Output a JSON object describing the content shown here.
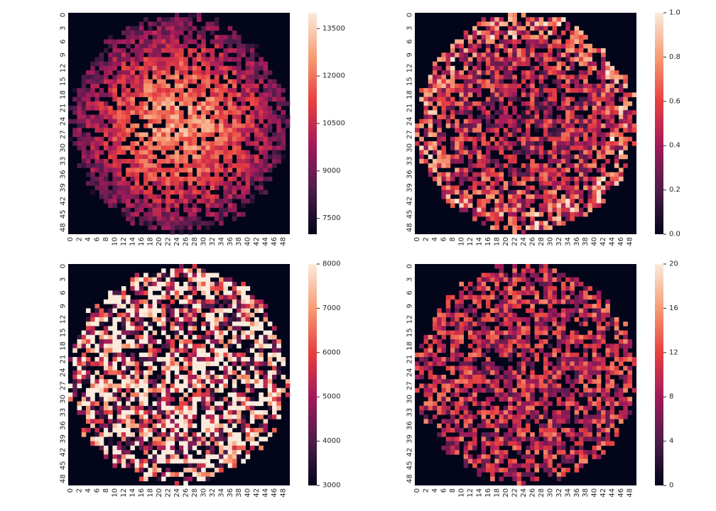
{
  "figure": {
    "background": "#ffffff",
    "frame_color": "#03051a"
  },
  "chart_data": [
    {
      "type": "heatmap",
      "rows": 50,
      "cols": 50,
      "colormap": "rocket",
      "vmin": 7000,
      "vmax": 14000,
      "background_value": 7000,
      "pattern": "radial",
      "disc_center": [
        24.5,
        24.5
      ],
      "disc_radius": 24.5,
      "center_value": 12500,
      "edge_value": 8600,
      "gap_fraction": 0.22,
      "xticks": [
        "0",
        "2",
        "4",
        "6",
        "8",
        "10",
        "12",
        "14",
        "16",
        "18",
        "20",
        "22",
        "24",
        "26",
        "28",
        "30",
        "32",
        "34",
        "36",
        "38",
        "40",
        "42",
        "44",
        "46",
        "48"
      ],
      "yticks": [
        "0",
        "3",
        "6",
        "9",
        "12",
        "15",
        "18",
        "21",
        "24",
        "27",
        "30",
        "33",
        "36",
        "39",
        "42",
        "45",
        "48"
      ],
      "colorbar_ticks": [
        7500,
        9000,
        10500,
        12000,
        13500
      ],
      "colorbar_tick_labels": [
        "7500",
        "9000",
        "10500",
        "12000",
        "13500"
      ],
      "grid": false
    },
    {
      "type": "heatmap",
      "rows": 50,
      "cols": 50,
      "colormap": "rocket",
      "vmin": 0.0,
      "vmax": 1.0,
      "background_value": 0.0,
      "pattern": "edge-rich",
      "disc_center": [
        24.5,
        24.5
      ],
      "disc_radius": 24.5,
      "center_value": 0.38,
      "edge_value": 0.62,
      "gap_fraction": 0.25,
      "xticks": [
        "0",
        "2",
        "4",
        "6",
        "8",
        "10",
        "12",
        "14",
        "16",
        "18",
        "20",
        "22",
        "24",
        "26",
        "28",
        "30",
        "32",
        "34",
        "36",
        "38",
        "40",
        "42",
        "44",
        "46",
        "48"
      ],
      "yticks": [
        "0",
        "3",
        "6",
        "9",
        "12",
        "15",
        "18",
        "21",
        "24",
        "27",
        "30",
        "33",
        "36",
        "39",
        "42",
        "45",
        "48"
      ],
      "colorbar_ticks": [
        0.0,
        0.2,
        0.4,
        0.6,
        0.8,
        1.0
      ],
      "colorbar_tick_labels": [
        "0.0",
        "0.2",
        "0.4",
        "0.6",
        "0.8",
        "1.0"
      ],
      "grid": false
    },
    {
      "type": "heatmap",
      "rows": 50,
      "cols": 50,
      "colormap": "rocket",
      "vmin": 3000,
      "vmax": 8000,
      "background_value": 3000,
      "pattern": "noisy",
      "disc_center": [
        24.5,
        24.5
      ],
      "disc_radius": 24.5,
      "center_value": 6400,
      "edge_value": 6000,
      "gap_fraction": 0.28,
      "xticks": [
        "0",
        "2",
        "4",
        "6",
        "8",
        "10",
        "12",
        "14",
        "16",
        "18",
        "20",
        "22",
        "24",
        "26",
        "28",
        "30",
        "32",
        "34",
        "36",
        "38",
        "40",
        "42",
        "44",
        "46",
        "48"
      ],
      "yticks": [
        "0",
        "3",
        "6",
        "9",
        "12",
        "15",
        "18",
        "21",
        "24",
        "27",
        "30",
        "33",
        "36",
        "39",
        "42",
        "45",
        "48"
      ],
      "colorbar_ticks": [
        3000,
        4000,
        5000,
        6000,
        7000,
        8000
      ],
      "colorbar_tick_labels": [
        "3000",
        "4000",
        "5000",
        "6000",
        "7000",
        "8000"
      ],
      "grid": false
    },
    {
      "type": "heatmap",
      "rows": 50,
      "cols": 50,
      "colormap": "rocket",
      "vmin": 0,
      "vmax": 20,
      "background_value": 0,
      "pattern": "uniform",
      "disc_center": [
        24.5,
        24.5
      ],
      "disc_radius": 24.5,
      "center_value": 9,
      "edge_value": 10,
      "gap_fraction": 0.3,
      "xticks": [
        "0",
        "2",
        "4",
        "6",
        "8",
        "10",
        "12",
        "14",
        "16",
        "18",
        "20",
        "22",
        "24",
        "26",
        "28",
        "30",
        "32",
        "34",
        "36",
        "38",
        "40",
        "42",
        "44",
        "46",
        "48"
      ],
      "yticks": [
        "0",
        "3",
        "6",
        "9",
        "12",
        "15",
        "18",
        "21",
        "24",
        "27",
        "30",
        "33",
        "36",
        "39",
        "42",
        "45",
        "48"
      ],
      "colorbar_ticks": [
        0,
        4,
        8,
        12,
        16,
        20
      ],
      "colorbar_tick_labels": [
        "0",
        "4",
        "8",
        "12",
        "16",
        "20"
      ],
      "grid": false
    }
  ]
}
